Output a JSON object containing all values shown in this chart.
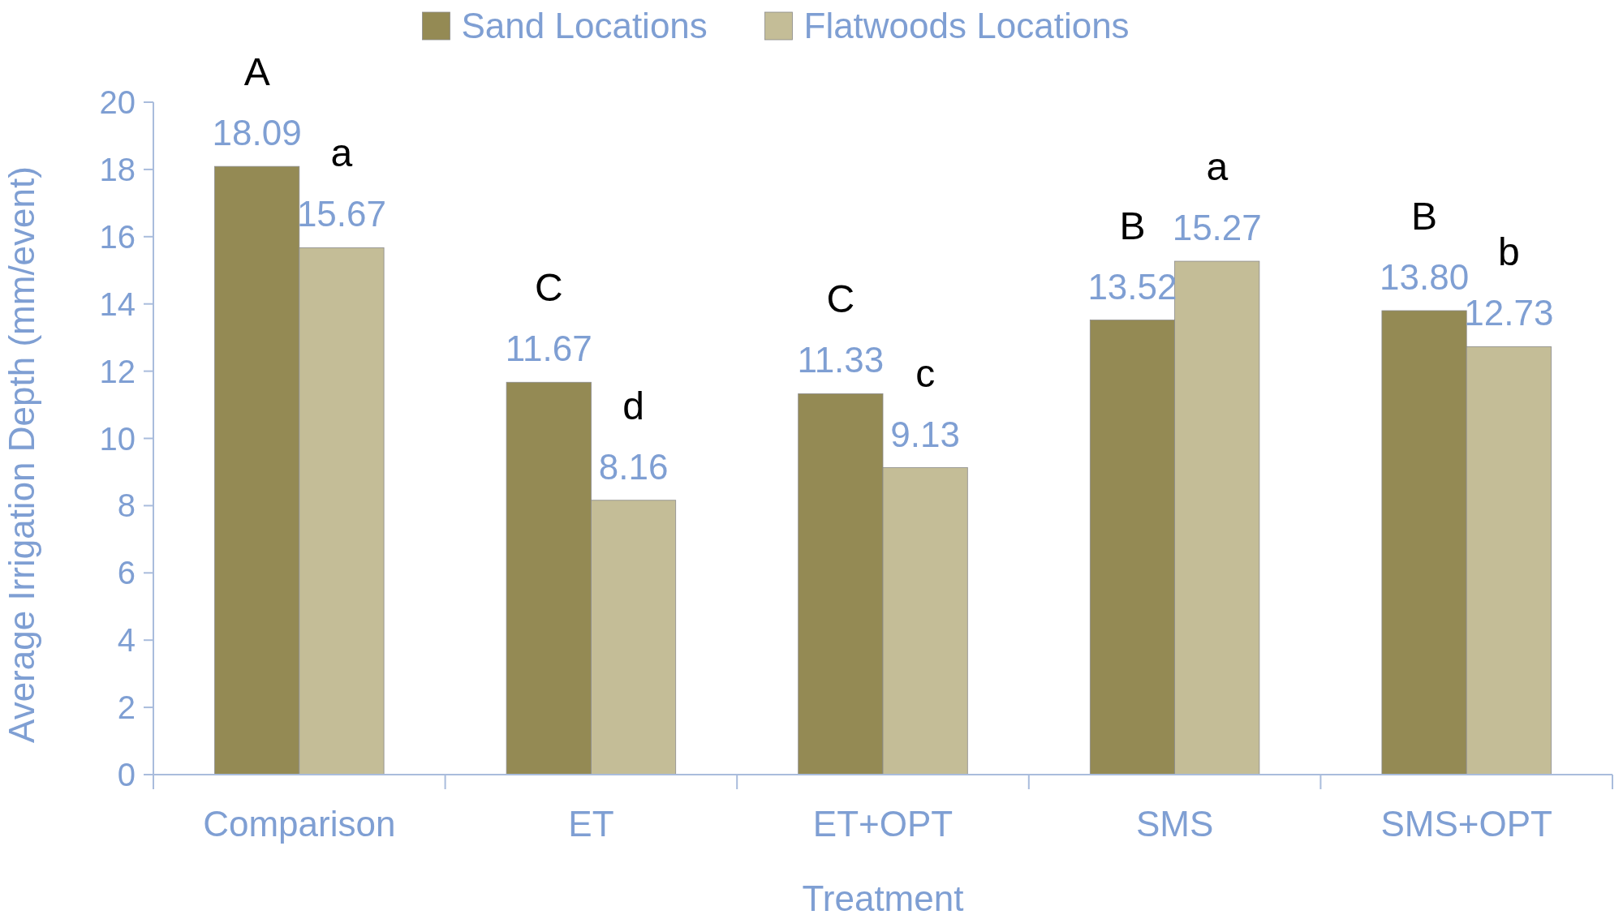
{
  "chart_data": {
    "type": "bar",
    "xlabel": "Treatment",
    "ylabel": "Average Irrigation Depth (mm/event)",
    "categories": [
      "Comparison",
      "ET",
      "ET+OPT",
      "SMS",
      "SMS+OPT"
    ],
    "series": [
      {
        "name": "Sand Locations",
        "color": "#948a54",
        "values": [
          18.09,
          11.67,
          11.33,
          13.52,
          13.8
        ],
        "value_labels": [
          "18.09",
          "11.67",
          "11.33",
          "13.52",
          "13.80"
        ]
      },
      {
        "name": "Flatwoods Locations",
        "color": "#c4bd97",
        "values": [
          15.67,
          8.16,
          9.13,
          15.27,
          12.73
        ],
        "value_labels": [
          "15.67",
          "8.16",
          "9.13",
          "15.27",
          "12.73"
        ]
      }
    ],
    "ylim": [
      0,
      20
    ],
    "yticks": [
      0,
      2,
      4,
      6,
      8,
      10,
      12,
      14,
      16,
      18,
      20
    ],
    "grid": false,
    "legend": "top",
    "annotations": [
      {
        "text": "A",
        "x": "Comparison",
        "y": 18.09
      },
      {
        "text": "a",
        "x": "Comparison",
        "y": 15.67
      },
      {
        "text": "C",
        "x": "ET",
        "y": 11.67
      },
      {
        "text": "d",
        "x": "ET",
        "y": 8.16
      },
      {
        "text": "C",
        "x": "ET+OPT",
        "y": 11.33
      },
      {
        "text": "c",
        "x": "ET+OPT",
        "y": 9.13
      },
      {
        "text": "B",
        "x": "SMS",
        "y": 13.52
      },
      {
        "text": "a",
        "x": "SMS",
        "y": 15.27
      },
      {
        "text": "B",
        "x": "SMS+OPT",
        "y": 13.8
      },
      {
        "text": "b",
        "x": "SMS+OPT",
        "y": 12.73
      }
    ]
  }
}
